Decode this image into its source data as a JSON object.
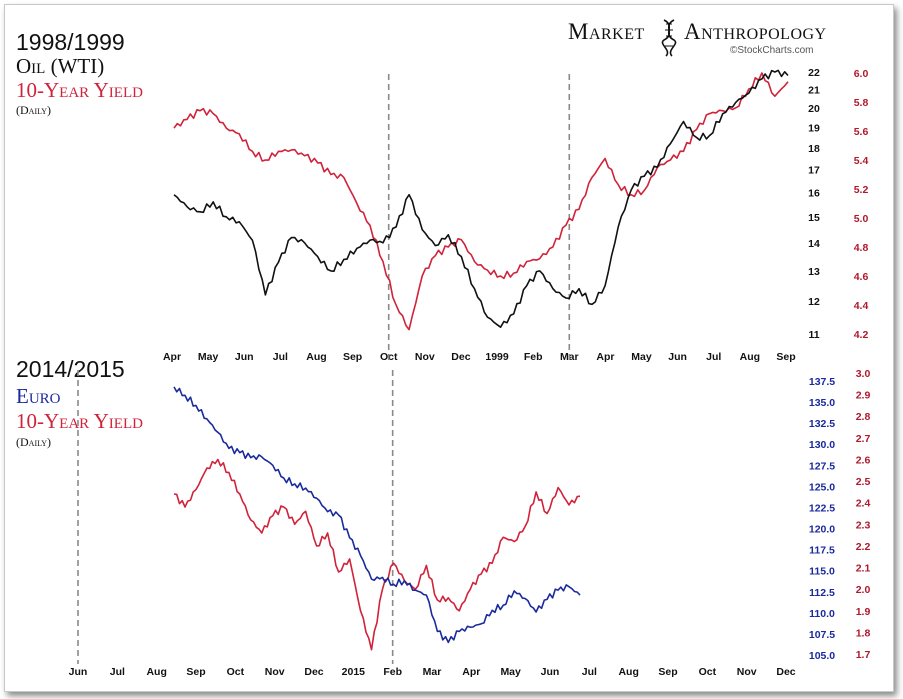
{
  "brand": {
    "title_left": "Market",
    "title_right": "Anthropology",
    "credit": "©StockCharts.com",
    "icon": "dna-helix-icon"
  },
  "colors": {
    "black": "#111111",
    "red": "#d0233a",
    "blue": "#1a2a9c",
    "dash": "#8a8a8a"
  },
  "panels": {
    "top": {
      "year": "1998/1999",
      "series_labels": [
        "Oil (WTI)",
        "10-Year Yield"
      ],
      "note": "(Daily)"
    },
    "bottom": {
      "year": "2014/2015",
      "series_labels": [
        "Euro",
        "10-Year Yield"
      ],
      "note": "(Daily)"
    }
  },
  "chart_data": [
    {
      "type": "line",
      "x_ticks": [
        "Apr",
        "May",
        "Jun",
        "Jul",
        "Aug",
        "Sep",
        "Oct",
        "Nov",
        "Dec",
        "1999",
        "Feb",
        "Mar",
        "Apr",
        "May",
        "Jun",
        "Jul",
        "Aug",
        "Sep"
      ],
      "vlines": [
        "Oct",
        "Mar"
      ],
      "axes": {
        "left_series": {
          "name": "Oil (WTI)",
          "ticks": [
            "11",
            "12",
            "13",
            "14",
            "15",
            "16",
            "17",
            "18",
            "19",
            "20",
            "21",
            "22"
          ],
          "scale": "log"
        },
        "right_series": {
          "name": "10-Year Yield",
          "ticks": [
            "4.2",
            "4.4",
            "4.6",
            "4.8",
            "5.0",
            "5.2",
            "5.4",
            "5.6",
            "5.8",
            "6.0"
          ],
          "range": [
            4.2,
            6.0
          ]
        }
      },
      "series": [
        {
          "name": "Oil (WTI)",
          "values": [
            15.9,
            15.4,
            15.2,
            15.6,
            15.0,
            14.8,
            14.1,
            12.2,
            13.3,
            14.2,
            14.0,
            13.5,
            13.0,
            13.4,
            13.8,
            14.1,
            14.0,
            14.6,
            15.9,
            14.5,
            13.9,
            14.3,
            13.5,
            12.4,
            11.5,
            11.2,
            11.6,
            12.5,
            13.0,
            12.4,
            12.1,
            12.4,
            11.9,
            12.5,
            14.6,
            16.1,
            16.7,
            17.1,
            18.2,
            19.3,
            18.5,
            18.6,
            19.7,
            20.3,
            20.8,
            21.6,
            22.0,
            21.8
          ]
        },
        {
          "name": "10-Year Yield",
          "values": [
            5.62,
            5.68,
            5.74,
            5.72,
            5.62,
            5.58,
            5.46,
            5.4,
            5.46,
            5.47,
            5.43,
            5.38,
            5.3,
            5.28,
            5.1,
            4.95,
            4.7,
            4.4,
            4.23,
            4.6,
            4.74,
            4.8,
            4.85,
            4.7,
            4.64,
            4.6,
            4.62,
            4.7,
            4.72,
            4.8,
            4.95,
            5.06,
            5.28,
            5.41,
            5.23,
            5.16,
            5.19,
            5.35,
            5.4,
            5.46,
            5.61,
            5.72,
            5.74,
            5.76,
            5.89,
            6.0,
            5.84,
            5.94
          ]
        }
      ]
    },
    {
      "type": "line",
      "x_ticks": [
        "Jun",
        "Jul",
        "Aug",
        "Sep",
        "Oct",
        "Nov",
        "Dec",
        "2015",
        "Feb",
        "Mar",
        "Apr",
        "May",
        "Jun",
        "Jul",
        "Aug",
        "Sep",
        "Oct",
        "Nov",
        "Dec"
      ],
      "vlines": [
        "Feb",
        "Jun"
      ],
      "axes": {
        "left_series": {
          "name": "Euro",
          "ticks": [
            "105.0",
            "107.5",
            "110.0",
            "112.5",
            "115.0",
            "117.5",
            "120.0",
            "122.5",
            "125.0",
            "127.5",
            "130.0",
            "132.5",
            "135.0",
            "137.5"
          ],
          "range": [
            105,
            137.5
          ]
        },
        "right_series": {
          "name": "10-Year Yield",
          "ticks": [
            "1.7",
            "1.8",
            "1.9",
            "2.0",
            "2.1",
            "2.2",
            "2.3",
            "2.4",
            "2.5",
            "2.6",
            "2.7",
            "2.8",
            "2.9",
            "3.0"
          ],
          "range": [
            1.7,
            3.0
          ]
        }
      },
      "series": [
        {
          "name": "Euro",
          "values": [
            136.8,
            135.8,
            134.6,
            133.0,
            131.4,
            129.5,
            129.0,
            128.4,
            128.5,
            127.5,
            126.0,
            125.3,
            124.8,
            123.6,
            122.0,
            121.6,
            118.9,
            116.8,
            114.0,
            114.2,
            113.4,
            113.8,
            112.7,
            112.1,
            107.8,
            106.5,
            107.8,
            108.3,
            108.7,
            110.3,
            110.9,
            112.6,
            111.7,
            110.1,
            111.6,
            112.7,
            113.1,
            112.1
          ]
        },
        {
          "name": "10-Year Yield",
          "values": [
            2.44,
            2.38,
            2.46,
            2.56,
            2.6,
            2.54,
            2.44,
            2.32,
            2.26,
            2.34,
            2.38,
            2.3,
            2.36,
            2.2,
            2.26,
            2.08,
            2.14,
            1.9,
            1.72,
            2.0,
            2.12,
            2.04,
            2.0,
            2.11,
            1.95,
            1.96,
            1.9,
            2.0,
            2.07,
            2.12,
            2.24,
            2.22,
            2.29,
            2.45,
            2.35,
            2.47,
            2.39,
            2.43
          ]
        }
      ]
    }
  ]
}
